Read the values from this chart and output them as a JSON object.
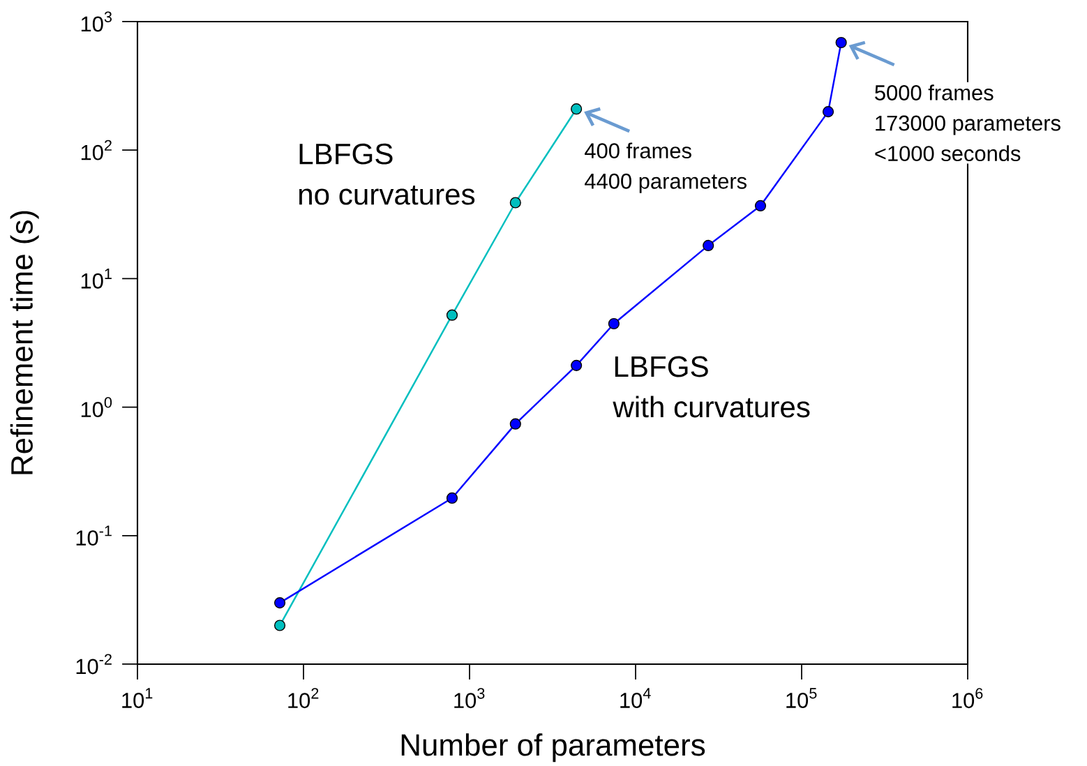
{
  "chart_data": {
    "type": "line",
    "xlabel": "Number of parameters",
    "ylabel": "Refinement time (s)",
    "log": "xy",
    "grid": false,
    "legend": false,
    "marker": "circle",
    "line_style": "solid",
    "xlim": [
      10,
      1000000
    ],
    "ylim": [
      0.01,
      1000
    ],
    "xticks": [
      {
        "value": 10,
        "label": "10$^{1}$"
      },
      {
        "value": 100,
        "label": "10$^{2}$"
      },
      {
        "value": 1000,
        "label": "10$^{3}$"
      },
      {
        "value": 10000,
        "label": "10$^{4}$"
      },
      {
        "value": 100000,
        "label": "10$^{5}$"
      },
      {
        "value": 1000000,
        "label": "10$^{6}$"
      }
    ],
    "yticks": [
      {
        "value": 0.01,
        "label": "10$^{-2}$"
      },
      {
        "value": 0.1,
        "label": "10$^{-1}$"
      },
      {
        "value": 1,
        "label": "10$^{0}$"
      },
      {
        "value": 10,
        "label": "10$^{1}$"
      },
      {
        "value": 100,
        "label": "10$^{2}$"
      },
      {
        "value": 1000,
        "label": "10$^{3}$"
      }
    ],
    "series": [
      {
        "name": "LBFGS no curvatures",
        "color": "#00bfbf",
        "x": [
          72,
          785,
          1890,
          4400
        ],
        "values": [
          0.02,
          5.2,
          39,
          209
        ]
      },
      {
        "name": "LBFGS with curvatures",
        "color": "#0000ff",
        "x": [
          72,
          785,
          1890,
          4400,
          7400,
          27400,
          56500,
          144500,
          173000
        ],
        "values": [
          0.03,
          0.196,
          0.74,
          2.11,
          4.46,
          18.1,
          36.9,
          199,
          687
        ]
      }
    ],
    "annotations": [
      {
        "text": "400 frames 4400 parameters",
        "x": 4400,
        "y": 209
      },
      {
        "text": "5000 frames 173000 parameters <1000 seconds",
        "x": 173000,
        "y": 687
      }
    ]
  }
}
